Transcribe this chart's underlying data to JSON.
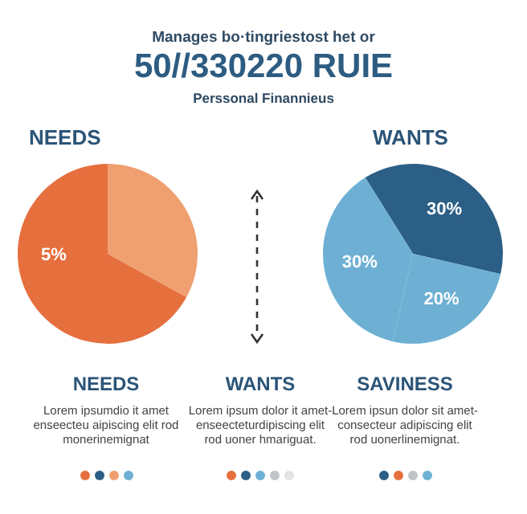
{
  "chart_data": [
    {
      "type": "other",
      "title": "50//330220 RUIE",
      "annotations": [
        "Manages bo·tingriestost het or",
        "Perssonal Finannieus"
      ]
    },
    {
      "type": "pie",
      "title": "NEEDS",
      "categories": [
        null,
        null
      ],
      "values": [
        33,
        67
      ],
      "colors": [
        "#f0a070",
        "#e66f3e"
      ],
      "annotations": [
        "5%"
      ],
      "legend": false
    },
    {
      "type": "pie",
      "title": "WANTS",
      "categories": [
        null,
        null,
        null
      ],
      "values": [
        30,
        20,
        30
      ],
      "colors": [
        "#2c5f86",
        "#6db0d4",
        "#6db0d4"
      ],
      "value_labels": [
        "30%",
        "20%",
        "30%"
      ],
      "legend": false
    },
    {
      "type": "other",
      "categories": [
        "NEEDS",
        "WANTS",
        "SAVINESS"
      ],
      "annotations": [
        "Lorem ipsumdio it amet enseecteu aipiscing elit rod monerinemignat",
        "Lorem ipsum dolor it amet-enseecteturdipiscing elit rod uoner hmariguat.",
        "Lorem ipsun dolor sit amet-consecteur adipiscing elit rod uonerlinemignat."
      ]
    }
  ]
}
